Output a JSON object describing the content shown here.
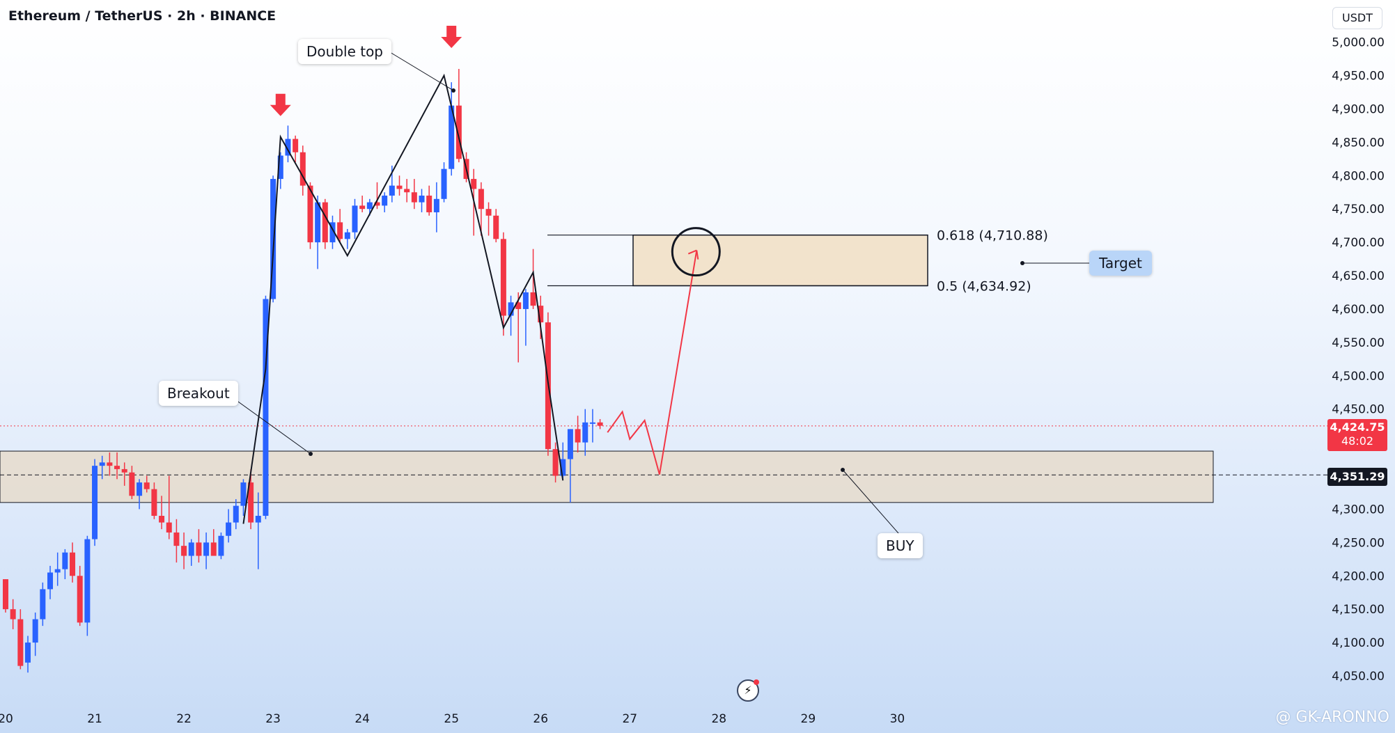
{
  "header": {
    "title": "Ethereum / TetherUS · 2h · BINANCE",
    "currency": "USDT"
  },
  "price_tags": {
    "current": "4,424.75",
    "countdown": "48:02",
    "level": "4,351.29"
  },
  "watermark": "@ GK-ARONNO",
  "colors": {
    "up": "#2962ff",
    "down": "#f23645",
    "zone_fill": "#e6dccb",
    "target_fill": "#f2e0c6"
  },
  "chart_data": {
    "type": "candlestick",
    "y_unit": "USDT",
    "ylim": [
      4020,
      5030
    ],
    "y_ticks": [
      "5,000.00",
      "4,950.00",
      "4,900.00",
      "4,850.00",
      "4,800.00",
      "4,750.00",
      "4,700.00",
      "4,650.00",
      "4,600.00",
      "4,550.00",
      "4,500.00",
      "4,450.00",
      "4,300.00",
      "4,250.00",
      "4,200.00",
      "4,150.00",
      "4,100.00",
      "4,050.00"
    ],
    "y_tick_values": [
      5000,
      4950,
      4900,
      4850,
      4800,
      4750,
      4700,
      4650,
      4600,
      4550,
      4500,
      4450,
      4300,
      4250,
      4200,
      4150,
      4100,
      4050
    ],
    "x_ticks": [
      "20",
      "21",
      "22",
      "23",
      "24",
      "25",
      "26",
      "27",
      "28",
      "29",
      "30"
    ],
    "x_tick_values": [
      0,
      12,
      24,
      36,
      48,
      60,
      72,
      84,
      96,
      108,
      120
    ],
    "candles": [
      [
        0,
        4195,
        4195,
        4145,
        4150
      ],
      [
        1,
        4150,
        4165,
        4120,
        4135
      ],
      [
        2,
        4135,
        4150,
        4060,
        4065
      ],
      [
        3,
        4070,
        4110,
        4055,
        4100
      ],
      [
        4,
        4100,
        4145,
        4080,
        4135
      ],
      [
        5,
        4135,
        4190,
        4125,
        4180
      ],
      [
        6,
        4180,
        4215,
        4165,
        4205
      ],
      [
        7,
        4205,
        4235,
        4185,
        4210
      ],
      [
        8,
        4210,
        4240,
        4195,
        4235
      ],
      [
        9,
        4235,
        4250,
        4190,
        4200
      ],
      [
        10,
        4200,
        4215,
        4125,
        4130
      ],
      [
        11,
        4130,
        4260,
        4110,
        4255
      ],
      [
        12,
        4255,
        4375,
        4245,
        4365
      ],
      [
        13,
        4365,
        4380,
        4345,
        4370
      ],
      [
        14,
        4370,
        4385,
        4350,
        4365
      ],
      [
        15,
        4365,
        4385,
        4345,
        4360
      ],
      [
        16,
        4360,
        4370,
        4335,
        4355
      ],
      [
        17,
        4355,
        4365,
        4315,
        4320
      ],
      [
        18,
        4320,
        4345,
        4300,
        4340
      ],
      [
        19,
        4340,
        4350,
        4325,
        4330
      ],
      [
        20,
        4330,
        4340,
        4285,
        4290
      ],
      [
        21,
        4290,
        4320,
        4270,
        4280
      ],
      [
        22,
        4280,
        4350,
        4255,
        4265
      ],
      [
        23,
        4265,
        4285,
        4220,
        4245
      ],
      [
        24,
        4245,
        4265,
        4210,
        4230
      ],
      [
        25,
        4230,
        4255,
        4215,
        4250
      ],
      [
        26,
        4250,
        4270,
        4220,
        4230
      ],
      [
        27,
        4230,
        4265,
        4210,
        4250
      ],
      [
        28,
        4250,
        4270,
        4235,
        4230
      ],
      [
        29,
        4230,
        4265,
        4225,
        4260
      ],
      [
        30,
        4260,
        4300,
        4250,
        4280
      ],
      [
        31,
        4280,
        4315,
        4270,
        4305
      ],
      [
        32,
        4305,
        4345,
        4290,
        4340
      ],
      [
        33,
        4340,
        4360,
        4270,
        4280
      ],
      [
        34,
        4280,
        4325,
        4210,
        4290
      ],
      [
        35,
        4290,
        4620,
        4285,
        4615
      ],
      [
        36,
        4615,
        4800,
        4610,
        4795
      ],
      [
        37,
        4795,
        4835,
        4780,
        4830
      ],
      [
        38,
        4830,
        4875,
        4820,
        4855
      ],
      [
        39,
        4855,
        4860,
        4820,
        4835
      ],
      [
        40,
        4835,
        4845,
        4770,
        4785
      ],
      [
        41,
        4785,
        4790,
        4690,
        4700
      ],
      [
        42,
        4700,
        4770,
        4660,
        4760
      ],
      [
        43,
        4760,
        4765,
        4690,
        4700
      ],
      [
        44,
        4700,
        4740,
        4690,
        4730
      ],
      [
        45,
        4730,
        4750,
        4700,
        4705
      ],
      [
        46,
        4705,
        4720,
        4690,
        4715
      ],
      [
        47,
        4715,
        4765,
        4705,
        4755
      ],
      [
        48,
        4755,
        4770,
        4745,
        4750
      ],
      [
        49,
        4750,
        4765,
        4740,
        4760
      ],
      [
        50,
        4760,
        4790,
        4750,
        4755
      ],
      [
        51,
        4755,
        4775,
        4745,
        4770
      ],
      [
        52,
        4770,
        4815,
        4760,
        4785
      ],
      [
        53,
        4785,
        4800,
        4770,
        4780
      ],
      [
        54,
        4780,
        4795,
        4760,
        4775
      ],
      [
        55,
        4775,
        4795,
        4750,
        4760
      ],
      [
        56,
        4760,
        4780,
        4745,
        4770
      ],
      [
        57,
        4770,
        4785,
        4740,
        4745
      ],
      [
        58,
        4745,
        4790,
        4715,
        4765
      ],
      [
        59,
        4765,
        4820,
        4760,
        4810
      ],
      [
        60,
        4810,
        4940,
        4800,
        4905
      ],
      [
        61,
        4905,
        4960,
        4820,
        4825
      ],
      [
        62,
        4825,
        4835,
        4790,
        4795
      ],
      [
        63,
        4795,
        4810,
        4710,
        4780
      ],
      [
        64,
        4780,
        4790,
        4710,
        4750
      ],
      [
        65,
        4750,
        4760,
        4710,
        4740
      ],
      [
        66,
        4740,
        4750,
        4700,
        4705
      ],
      [
        67,
        4705,
        4715,
        4560,
        4590
      ],
      [
        68,
        4590,
        4620,
        4560,
        4610
      ],
      [
        69,
        4610,
        4625,
        4520,
        4600
      ],
      [
        70,
        4600,
        4630,
        4545,
        4625
      ],
      [
        71,
        4625,
        4690,
        4600,
        4605
      ],
      [
        72,
        4605,
        4620,
        4555,
        4580
      ],
      [
        73,
        4580,
        4595,
        4380,
        4390
      ],
      [
        74,
        4390,
        4400,
        4340,
        4350
      ],
      [
        75,
        4350,
        4400,
        4345,
        4375
      ],
      [
        76,
        4375,
        4420,
        4310,
        4420
      ],
      [
        77,
        4420,
        4440,
        4385,
        4400
      ],
      [
        78,
        4400,
        4450,
        4380,
        4430
      ],
      [
        79,
        4430,
        4450,
        4400,
        4430
      ],
      [
        80,
        4430,
        4435,
        4420,
        4425
      ]
    ],
    "support_zone": [
      4310,
      4387
    ],
    "support_line": 4351.29,
    "current_price": 4424.75,
    "target_zone": [
      4634.92,
      4710.88
    ],
    "double_top_path": [
      [
        32,
        4278
      ],
      [
        35,
        4510
      ],
      [
        37,
        4858
      ],
      [
        46,
        4680
      ],
      [
        59,
        4950
      ],
      [
        62,
        4810
      ],
      [
        67,
        4572
      ],
      [
        71,
        4655
      ],
      [
        73,
        4490
      ],
      [
        75,
        4343
      ]
    ],
    "projection_path": [
      [
        81,
        4415
      ],
      [
        83,
        4446
      ],
      [
        84,
        4405
      ],
      [
        86,
        4433
      ],
      [
        88,
        4352
      ],
      [
        93,
        4688
      ]
    ],
    "fib_levels": [
      {
        "label": "0.618 (4,710.88)",
        "value": 4710.88
      },
      {
        "label": "0.5 (4,634.92)",
        "value": 4634.92
      }
    ],
    "annotations": [
      "Double top",
      "Breakout",
      "Target",
      "BUY"
    ]
  }
}
